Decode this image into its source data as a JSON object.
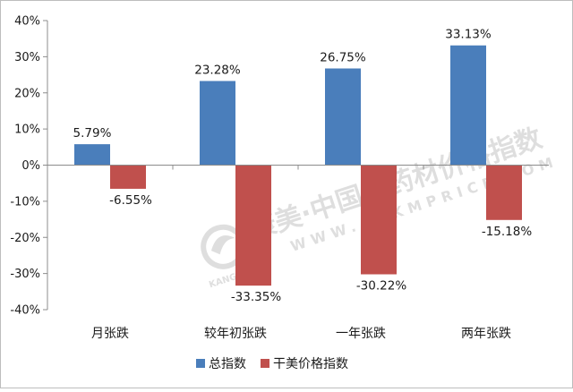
{
  "chart_data": {
    "type": "bar",
    "categories": [
      "月张跌",
      "较年初张跌",
      "一年张跌",
      "两年张跌"
    ],
    "series": [
      {
        "name": "总指数",
        "values": [
          5.79,
          23.28,
          26.75,
          33.13
        ],
        "labels": [
          "5.79%",
          "23.28%",
          "26.75%",
          "33.13%"
        ],
        "color": "#4a7ebb"
      },
      {
        "name": "干美价格指数",
        "values": [
          -6.55,
          -33.35,
          -30.22,
          -15.18
        ],
        "labels": [
          "-6.55%",
          "-33.35%",
          "-30.22%",
          "-15.18%"
        ],
        "color": "#c0504d"
      }
    ],
    "yticks": [
      40,
      30,
      20,
      10,
      0,
      -10,
      -20,
      -30,
      -40
    ],
    "ytick_labels": [
      "40%",
      "30%",
      "20%",
      "10%",
      "0%",
      "-10%",
      "-20%",
      "-30%",
      "-40%"
    ],
    "ylim": [
      -40,
      40
    ],
    "grid": false,
    "legend_position": "bottom"
  },
  "watermark": {
    "brand": "康美·中国中药材价格指数",
    "url": "WWW.CNKMPRICE.COM",
    "mark": "KANGMEI"
  }
}
